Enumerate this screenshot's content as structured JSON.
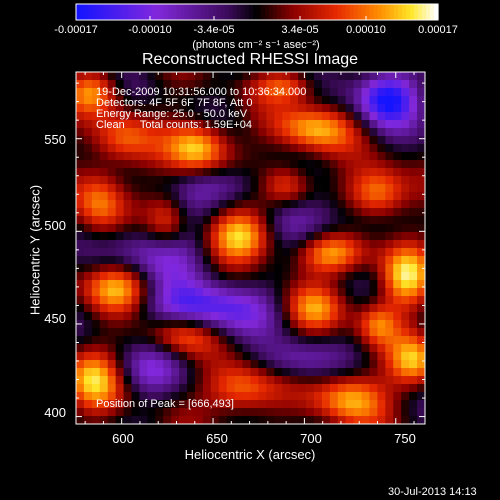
{
  "chart_data": {
    "type": "heatmap",
    "title": "Reconstructed RHESSI Image",
    "xlabel": "Heliocentric X (arcsec)",
    "ylabel": "Heliocentric Y (arcsec)",
    "xlim": [
      575,
      766
    ],
    "ylim": [
      396,
      586
    ],
    "xticks": [
      "600",
      "650",
      "700",
      "750"
    ],
    "yticks": [
      "400",
      "450",
      "500",
      "550"
    ],
    "colorbar": {
      "range": [
        -0.00017,
        0.00017
      ],
      "ticks": [
        "-0.00017",
        "-0.00010",
        "-3.4e-05",
        "3.4e-05",
        "0.00010",
        "0.00017"
      ],
      "unit": "(photons cm⁻² s⁻¹ asec⁻²)"
    },
    "annotations": [
      "19-Dec-2009 10:31:56.000 to 10:36:34.000",
      "Detectors: 4F 5F 6F 7F 8F, Att 0",
      "Energy Range: 25.0 - 50.0 keV",
      "Clean     Total counts: 1.59E+04"
    ],
    "peak_label": "Position of Peak = [666,493]",
    "peak": [
      666,
      493
    ],
    "blobs": [
      {
        "x": 666,
        "y": 498,
        "amp": 1.0,
        "sx": 14,
        "sy": 10
      },
      {
        "x": 642,
        "y": 545,
        "amp": 0.85,
        "sx": 12,
        "sy": 10
      },
      {
        "x": 705,
        "y": 555,
        "amp": 0.75,
        "sx": 15,
        "sy": 9
      },
      {
        "x": 740,
        "y": 520,
        "amp": 0.8,
        "sx": 12,
        "sy": 10
      },
      {
        "x": 715,
        "y": 488,
        "amp": 0.75,
        "sx": 14,
        "sy": 8
      },
      {
        "x": 755,
        "y": 475,
        "amp": 0.8,
        "sx": 10,
        "sy": 12
      },
      {
        "x": 705,
        "y": 458,
        "amp": 0.6,
        "sx": 12,
        "sy": 9
      },
      {
        "x": 598,
        "y": 470,
        "amp": 0.8,
        "sx": 14,
        "sy": 10
      },
      {
        "x": 588,
        "y": 515,
        "amp": 0.65,
        "sx": 10,
        "sy": 14
      },
      {
        "x": 600,
        "y": 550,
        "amp": 0.55,
        "sx": 12,
        "sy": 10
      },
      {
        "x": 632,
        "y": 445,
        "amp": 0.65,
        "sx": 14,
        "sy": 8
      },
      {
        "x": 665,
        "y": 415,
        "amp": 0.7,
        "sx": 14,
        "sy": 10
      },
      {
        "x": 725,
        "y": 410,
        "amp": 0.75,
        "sx": 14,
        "sy": 10
      },
      {
        "x": 760,
        "y": 430,
        "amp": 0.7,
        "sx": 10,
        "sy": 10
      },
      {
        "x": 585,
        "y": 420,
        "amp": 0.75,
        "sx": 12,
        "sy": 12
      },
      {
        "x": 690,
        "y": 525,
        "amp": 0.6,
        "sx": 10,
        "sy": 8
      },
      {
        "x": 740,
        "y": 450,
        "amp": 0.55,
        "sx": 8,
        "sy": 8
      },
      {
        "x": 625,
        "y": 505,
        "amp": 0.5,
        "sx": 8,
        "sy": 10
      },
      {
        "x": 585,
        "y": 575,
        "amp": 0.6,
        "sx": 10,
        "sy": 8
      },
      {
        "x": 690,
        "y": 578,
        "amp": 0.5,
        "sx": 12,
        "sy": 6
      },
      {
        "x": 745,
        "y": 572,
        "amp": -1.0,
        "sx": 12,
        "sy": 11
      },
      {
        "x": 645,
        "y": 458,
        "amp": -0.8,
        "sx": 26,
        "sy": 10
      },
      {
        "x": 620,
        "y": 488,
        "amp": -0.6,
        "sx": 22,
        "sy": 12
      },
      {
        "x": 702,
        "y": 505,
        "amp": -0.5,
        "sx": 22,
        "sy": 10
      },
      {
        "x": 658,
        "y": 525,
        "amp": -0.45,
        "sx": 18,
        "sy": 8
      },
      {
        "x": 615,
        "y": 425,
        "amp": -0.4,
        "sx": 16,
        "sy": 10
      },
      {
        "x": 695,
        "y": 430,
        "amp": -0.45,
        "sx": 16,
        "sy": 8
      }
    ]
  },
  "footer_date": "30-Jul-2013 14:13"
}
